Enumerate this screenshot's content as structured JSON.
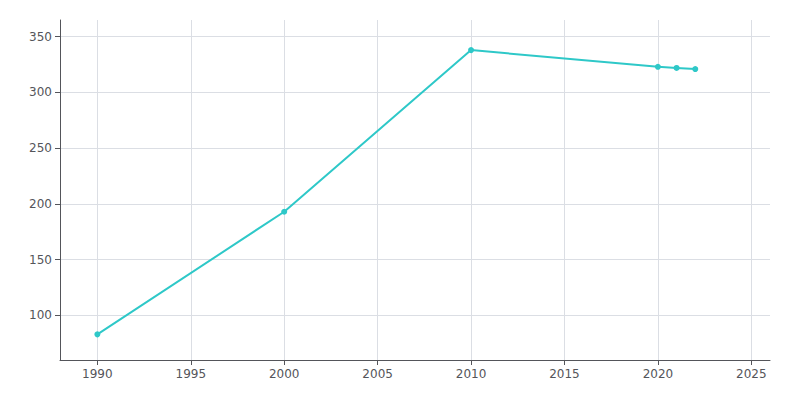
{
  "chart_data": {
    "type": "line",
    "x": [
      1990,
      2000,
      2010,
      2020,
      2021,
      2022
    ],
    "values": [
      83,
      193,
      338,
      323,
      322,
      321
    ],
    "color": "#2ec8c8",
    "marker": "circle",
    "xlim": [
      1988,
      2026
    ],
    "ylim": [
      60,
      365
    ],
    "xticks": [
      1990,
      1995,
      2000,
      2005,
      2010,
      2015,
      2020,
      2025
    ],
    "yticks": [
      100,
      150,
      200,
      250,
      300,
      350
    ],
    "grid": true
  }
}
